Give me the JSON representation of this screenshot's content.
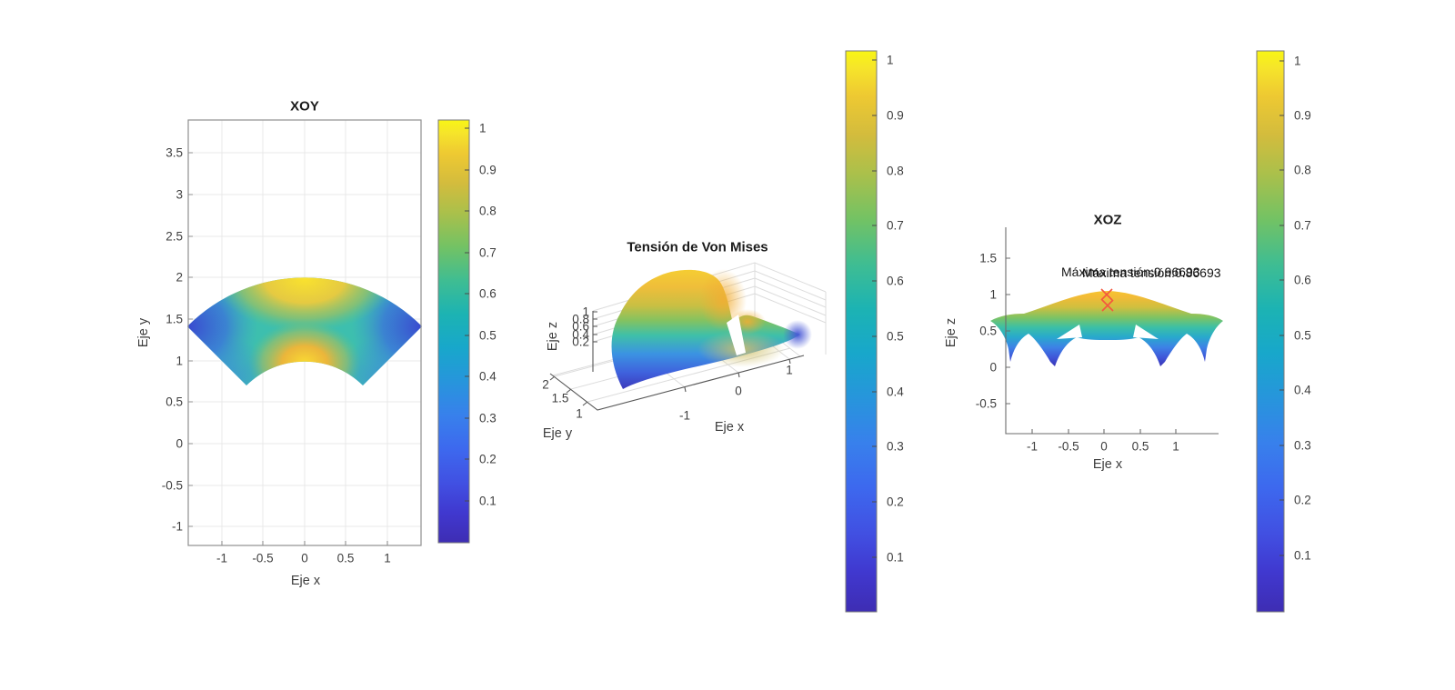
{
  "figure": {
    "background": "#ffffff",
    "colormap": "parula"
  },
  "panels": {
    "xoy": {
      "title": "XOY",
      "xlabel": "Eje x",
      "ylabel": "Eje y",
      "x_ticks": [
        "-1",
        "-0.5",
        "0",
        "0.5",
        "1"
      ],
      "y_ticks": [
        "3.5",
        "3",
        "2.5",
        "2",
        "1.5",
        "1",
        "0.5",
        "0",
        "-0.5",
        "-1"
      ],
      "colorbar_ticks": [
        "1",
        "0.9",
        "0.8",
        "0.7",
        "0.6",
        "0.5",
        "0.4",
        "0.3",
        "0.2",
        "0.1"
      ]
    },
    "von_mises_3d": {
      "title": "Tensión de Von Mises",
      "xlabel": "Eje x",
      "ylabel": "Eje y",
      "zlabel": "Eje z",
      "x_ticks": [
        "-1",
        "0",
        "1"
      ],
      "y_ticks": [
        "2",
        "1.5",
        "1"
      ],
      "z_ticks": [
        "1",
        "0.8",
        "0.6",
        "0.4",
        "0.2"
      ],
      "colorbar_ticks": [
        "1",
        "0.9",
        "0.8",
        "0.7",
        "0.6",
        "0.5",
        "0.4",
        "0.3",
        "0.2",
        "0.1"
      ]
    },
    "xoz": {
      "title": "XOZ",
      "xlabel": "Eje x",
      "zlabel": "Eje z",
      "x_ticks": [
        "-1",
        "-0.5",
        "0",
        "0.5",
        "1"
      ],
      "z_ticks": [
        "1.5",
        "1",
        "0.5",
        "0",
        "-0.5"
      ],
      "annotation_1": "Máxima tensión:0.96693",
      "annotation_2": "Máxima tensión:0.86693",
      "colorbar_ticks": [
        "1",
        "0.9",
        "0.8",
        "0.7",
        "0.6",
        "0.5",
        "0.4",
        "0.3",
        "0.2",
        "0.1"
      ]
    }
  },
  "colors": {
    "marker_red": "#f4573f",
    "parula_bottom": "#3e2db3",
    "parula_top": "#f8f515",
    "grid": "#e8e8e8",
    "axis": "#8f8f8f"
  },
  "chart_data": [
    {
      "type": "heatmap",
      "title": "XOY",
      "xlabel": "Eje x",
      "ylabel": "Eje y",
      "xlim": [
        -1.41,
        1.41
      ],
      "ylim": [
        -1.23,
        3.89
      ],
      "x_ticks": [
        -1,
        -0.5,
        0,
        0.5,
        1
      ],
      "y_ticks": [
        3.5,
        3,
        2.5,
        2,
        1.5,
        1,
        0.5,
        0,
        -0.5,
        -1
      ],
      "grid": true,
      "box": true,
      "shape": "annular sector, inner radius 1, outer radius 2, angle 45deg to 135deg, centered at origin",
      "color_field": "Von Mises stress, range 0 to 1 (parula)",
      "color_features": "yellow ~1 at outer-arc center (0,2) and inner-arc center (0,1); dark blue ~0.05 at tips (-1.41,1.41) and (1.41,1.41); teal ~0.5 elsewhere",
      "colorbar_range": [
        0,
        1
      ],
      "colorbar_ticks": [
        0.1,
        0.2,
        0.3,
        0.4,
        0.5,
        0.6,
        0.7,
        0.8,
        0.9,
        1
      ]
    },
    {
      "type": "surface3d",
      "title": "Tensión de Von Mises",
      "xlabel": "Eje x",
      "ylabel": "Eje y",
      "zlabel": "Eje z",
      "x_ticks": [
        -1,
        0,
        1
      ],
      "y_ticks": [
        1,
        1.5,
        2
      ],
      "z_ticks": [
        0.2,
        0.4,
        0.6,
        0.8,
        1
      ],
      "zlim": [
        0,
        1
      ],
      "description": "dome-shaped Von Mises stress surface over annular sector domain, peak z~1 colored yellow, edges blue ~0",
      "colorbar_range": [
        0,
        1
      ],
      "colorbar_ticks": [
        0.1,
        0.2,
        0.3,
        0.4,
        0.5,
        0.6,
        0.7,
        0.8,
        0.9,
        1
      ]
    },
    {
      "type": "heatmap",
      "title": "XOZ",
      "xlabel": "Eje x",
      "ylabel": "Eje z",
      "xlim": [
        -1.37,
        1.55
      ],
      "ylim": [
        -0.93,
        1.91
      ],
      "x_ticks": [
        -1,
        -0.5,
        0,
        0.5,
        1
      ],
      "y_ticks": [
        -0.5,
        0,
        0.5,
        1,
        1.5
      ],
      "grid": false,
      "box": false,
      "description": "XZ projection of the surface: central dome peaking at z~0.97 (yellow), side wings at z~0.65 (green/teal) reaching x~±1.45, blue spikes dipping to z~0 near x~±0.7 and x~±1.35",
      "annotations": [
        {
          "text": "Máxima tensión:0.96693",
          "value": 0.96693,
          "marker": "x",
          "point_x": 0,
          "point_z": 0.96693
        },
        {
          "text": "Máxima tensión:0.86693",
          "value": 0.86693,
          "marker": "x",
          "point_x": 0,
          "point_z": 0.86693
        }
      ],
      "colorbar_range": [
        0,
        1
      ],
      "colorbar_ticks": [
        0.1,
        0.2,
        0.3,
        0.4,
        0.5,
        0.6,
        0.7,
        0.8,
        0.9,
        1
      ]
    }
  ]
}
